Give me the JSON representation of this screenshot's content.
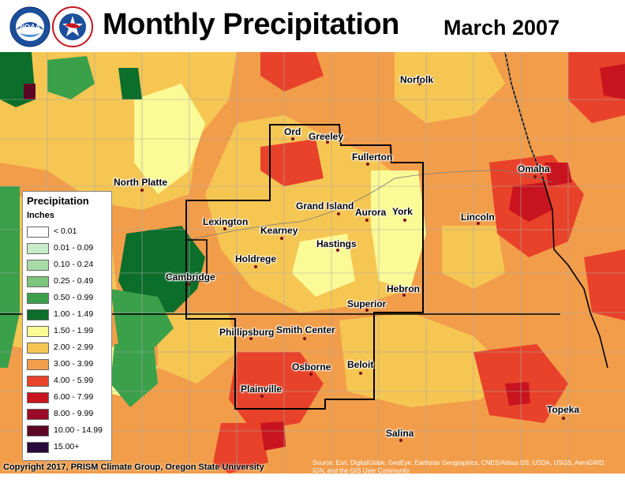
{
  "header": {
    "title": "Monthly Precipitation",
    "period": "March 2007"
  },
  "logos": [
    {
      "name": "noaa",
      "text": "NOAA"
    },
    {
      "name": "nws",
      "text": "NATIONAL WEATHER SERVICE"
    }
  ],
  "legend": {
    "title": "Precipitation",
    "units": "Inches",
    "items": [
      {
        "label": "< 0.01",
        "color": "#ffffff"
      },
      {
        "label": "0.01 - 0.09",
        "color": "#c8ecc8"
      },
      {
        "label": "0.10 - 0.24",
        "color": "#a6dba6"
      },
      {
        "label": "0.25 - 0.49",
        "color": "#7dc47d"
      },
      {
        "label": "0.50 - 0.99",
        "color": "#3aa04a"
      },
      {
        "label": "1.00 - 1.49",
        "color": "#0b6e2a"
      },
      {
        "label": "1.50 - 1.99",
        "color": "#fafa96"
      },
      {
        "label": "2.00 - 2.99",
        "color": "#f6c653"
      },
      {
        "label": "3.00 - 3.99",
        "color": "#f29d4a"
      },
      {
        "label": "4.00 - 5.99",
        "color": "#e8422a"
      },
      {
        "label": "6.00 - 7.99",
        "color": "#c8141e"
      },
      {
        "label": "8.00 - 9.99",
        "color": "#9c0a28"
      },
      {
        "label": "10.00 - 14.99",
        "color": "#5c0626"
      },
      {
        "label": "15.00+",
        "color": "#2a0a3c"
      }
    ]
  },
  "cities": [
    {
      "name": "Norfolk"
    },
    {
      "name": "Ord"
    },
    {
      "name": "Greeley"
    },
    {
      "name": "Fullerton"
    },
    {
      "name": "Omaha"
    },
    {
      "name": "North Platte"
    },
    {
      "name": "Grand Island"
    },
    {
      "name": "Aurora"
    },
    {
      "name": "York"
    },
    {
      "name": "Lincoln"
    },
    {
      "name": "Lexington"
    },
    {
      "name": "Kearney"
    },
    {
      "name": "Hastings"
    },
    {
      "name": "Holdrege"
    },
    {
      "name": "Cambridge"
    },
    {
      "name": "Hebron"
    },
    {
      "name": "Superior"
    },
    {
      "name": "Phillipsburg"
    },
    {
      "name": "Smith Center"
    },
    {
      "name": "Osborne"
    },
    {
      "name": "Beloit"
    },
    {
      "name": "Plainville"
    },
    {
      "name": "Topeka"
    },
    {
      "name": "Salina"
    }
  ],
  "footer": {
    "copyright": "Copyright 2017, PRISM Climate Group, Oregon State University",
    "source": "Source: Esri, DigitalGlobe, GeoEye, Earthstar Geographics, CNES/Airbus DS, USDA, USGS, AeroGRID, IGN, and the GIS User Community"
  }
}
